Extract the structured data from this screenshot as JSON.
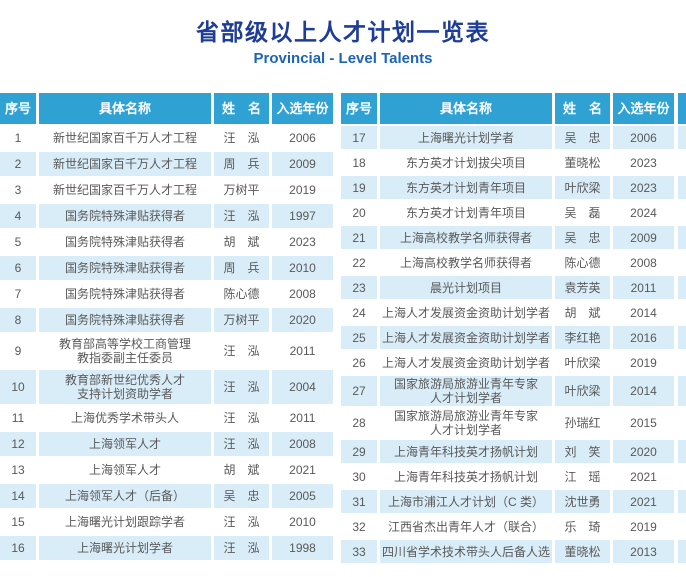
{
  "title": "省部级以上人才计划一览表",
  "subtitle": "Provincial - Level Talents",
  "columns": [
    "序号",
    "具体名称",
    "姓　名",
    "入选年份"
  ],
  "colors": {
    "header_bg": "#2fa2d3",
    "stripe": "#d9edf8",
    "title": "#1e3d96",
    "subtitle": "#1c64b8",
    "body_text": "#595959"
  },
  "tables": [
    {
      "id": "left",
      "stripe_offset": 1,
      "rows": [
        {
          "no": "1",
          "program": "新世纪国家百千万人才工程",
          "name": "汪　泓",
          "year": "2006"
        },
        {
          "no": "2",
          "program": "新世纪国家百千万人才工程",
          "name": "周　兵",
          "year": "2009"
        },
        {
          "no": "3",
          "program": "新世纪国家百千万人才工程",
          "name": "万树平",
          "year": "2019"
        },
        {
          "no": "4",
          "program": "国务院特殊津贴获得者",
          "name": "汪　泓",
          "year": "1997"
        },
        {
          "no": "5",
          "program": "国务院特殊津贴获得者",
          "name": "胡　斌",
          "year": "2023"
        },
        {
          "no": "6",
          "program": "国务院特殊津贴获得者",
          "name": "周　兵",
          "year": "2010"
        },
        {
          "no": "7",
          "program": "国务院特殊津贴获得者",
          "name": "陈心德",
          "year": "2008"
        },
        {
          "no": "8",
          "program": "国务院特殊津贴获得者",
          "name": "万树平",
          "year": "2020"
        },
        {
          "no": "9",
          "program": "教育部高等学校工商管理\n教指委副主任委员",
          "name": "汪　泓",
          "year": "2011"
        },
        {
          "no": "10",
          "program": "教育部新世纪优秀人才\n支持计划资助学者",
          "name": "汪　泓",
          "year": "2004"
        },
        {
          "no": "11",
          "program": "上海优秀学术带头人",
          "name": "汪　泓",
          "year": "2011"
        },
        {
          "no": "12",
          "program": "上海领军人才",
          "name": "汪　泓",
          "year": "2008"
        },
        {
          "no": "13",
          "program": "上海领军人才",
          "name": "胡　斌",
          "year": "2021"
        },
        {
          "no": "14",
          "program": "上海领军人才（后备）",
          "name": "吴　忠",
          "year": "2005"
        },
        {
          "no": "15",
          "program": "上海曙光计划跟踪学者",
          "name": "汪　泓",
          "year": "2010"
        },
        {
          "no": "16",
          "program": "上海曙光计划学者",
          "name": "汪　泓",
          "year": "1998"
        }
      ]
    },
    {
      "id": "right",
      "stripe_offset": 0,
      "rows": [
        {
          "no": "17",
          "program": "上海曙光计划学者",
          "name": "吴　忠",
          "year": "2006"
        },
        {
          "no": "18",
          "program": "东方英才计划拔尖项目",
          "name": "董晓松",
          "year": "2023"
        },
        {
          "no": "19",
          "program": "东方英才计划青年项目",
          "name": "叶欣梁",
          "year": "2023"
        },
        {
          "no": "20",
          "program": "东方英才计划青年项目",
          "name": "吴　磊",
          "year": "2024"
        },
        {
          "no": "21",
          "program": "上海高校教学名师获得者",
          "name": "吴　忠",
          "year": "2009"
        },
        {
          "no": "22",
          "program": "上海高校教学名师获得者",
          "name": "陈心德",
          "year": "2008"
        },
        {
          "no": "23",
          "program": "晨光计划项目",
          "name": "袁芳英",
          "year": "2011"
        },
        {
          "no": "24",
          "program": "上海人才发展资金资助计划学者",
          "name": "胡　斌",
          "year": "2014"
        },
        {
          "no": "25",
          "program": "上海人才发展资金资助计划学者",
          "name": "李红艳",
          "year": "2016"
        },
        {
          "no": "26",
          "program": "上海人才发展资金资助计划学者",
          "name": "叶欣梁",
          "year": "2019"
        },
        {
          "no": "27",
          "program": "国家旅游局旅游业青年专家\n人才计划学者",
          "name": "叶欣梁",
          "year": "2014"
        },
        {
          "no": "28",
          "program": "国家旅游局旅游业青年专家\n人才计划学者",
          "name": "孙瑞红",
          "year": "2015"
        },
        {
          "no": "29",
          "program": "上海青年科技英才扬帆计划",
          "name": "刘　笑",
          "year": "2020"
        },
        {
          "no": "30",
          "program": "上海青年科技英才扬帆计划",
          "name": "江　瑶",
          "year": "2021"
        },
        {
          "no": "31",
          "program": "上海市浦江人才计划（C 类）",
          "name": "沈世勇",
          "year": "2021"
        },
        {
          "no": "32",
          "program": "江西省杰出青年人才（联合）",
          "name": "乐　琦",
          "year": "2019"
        },
        {
          "no": "33",
          "program": "四川省学术技术带头人后备人选",
          "name": "董晓松",
          "year": "2013"
        }
      ]
    }
  ]
}
